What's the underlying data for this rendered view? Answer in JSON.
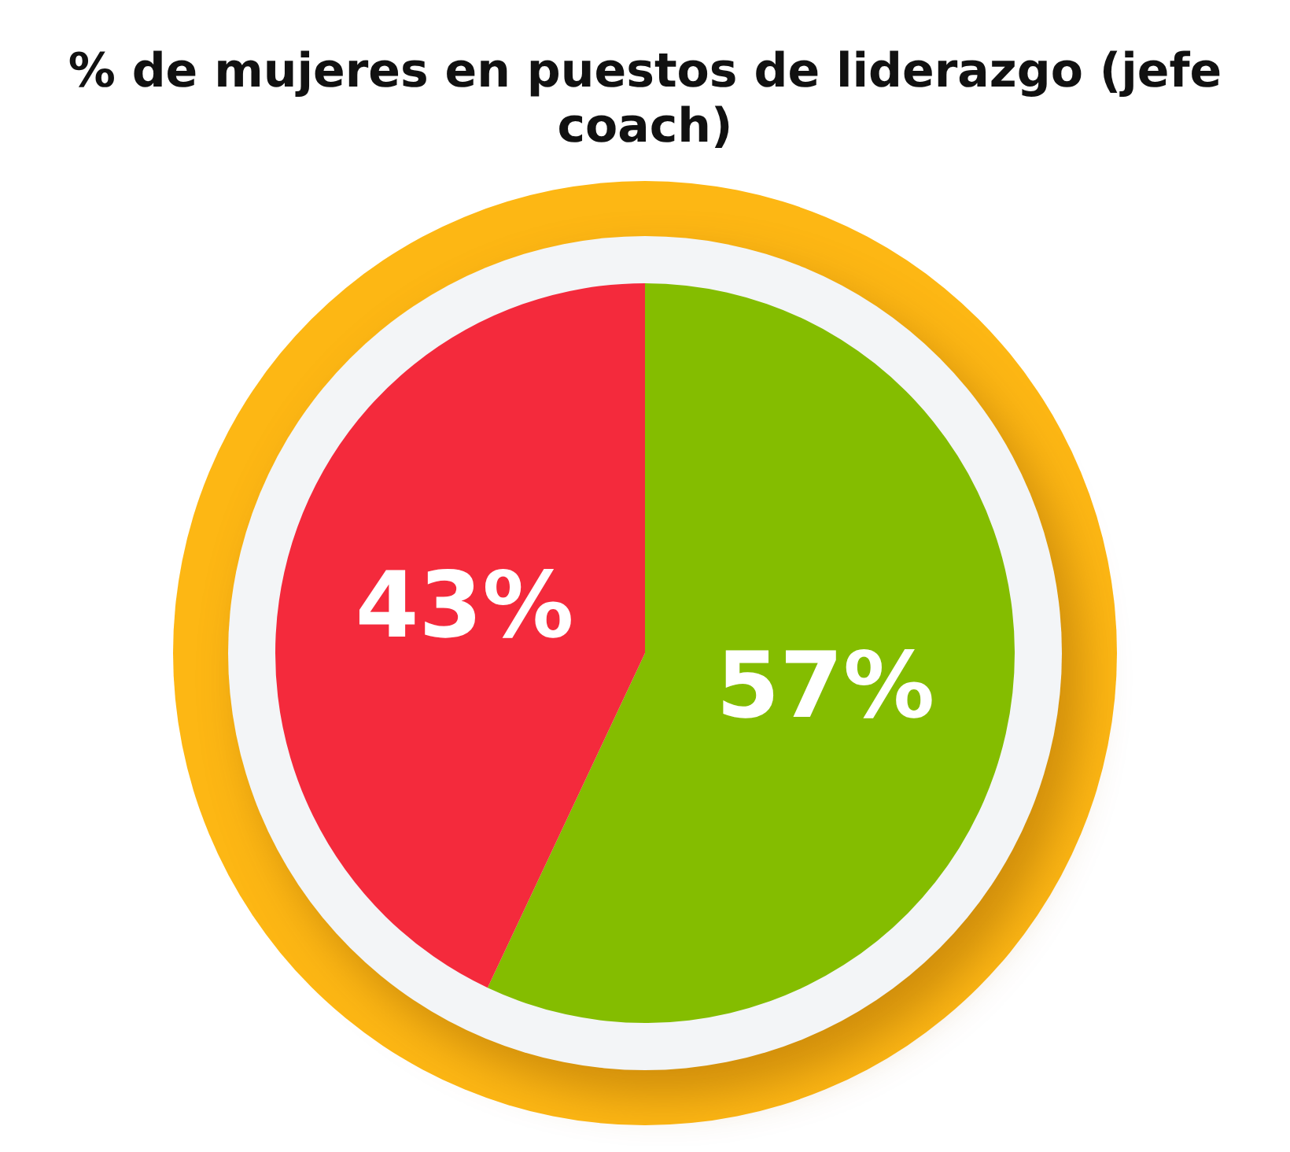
{
  "chart_data": {
    "type": "pie",
    "title": "% de mujeres en puestos de liderazgo (jefe coach)",
    "categories": [
      null,
      null
    ],
    "values": [
      57,
      43
    ],
    "colors": [
      "#84bd00",
      "#f42a3c"
    ],
    "value_labels": [
      "57%",
      "43%"
    ],
    "legend": false
  }
}
